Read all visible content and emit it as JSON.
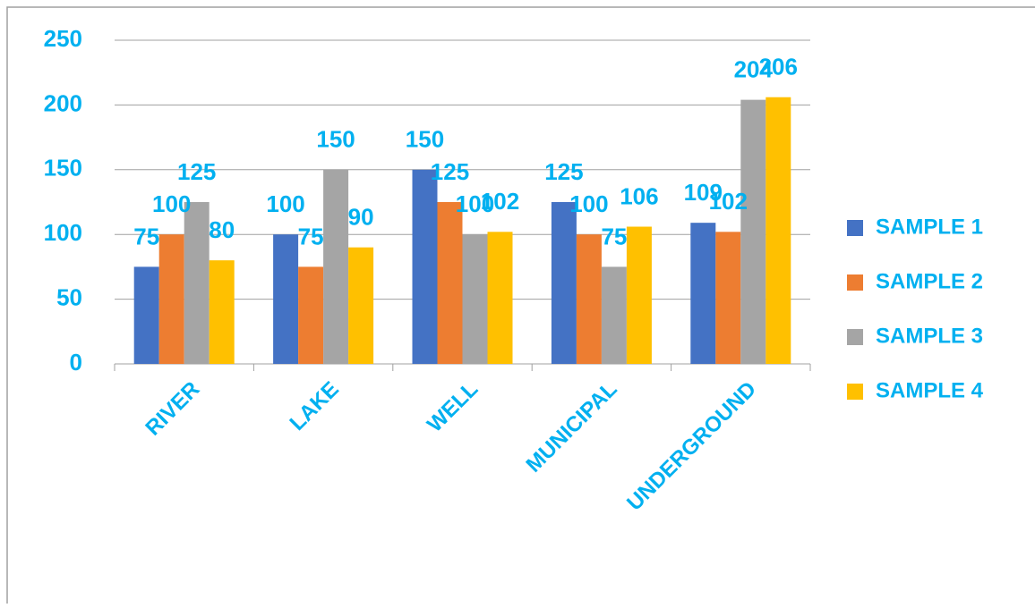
{
  "chart_data": {
    "type": "bar",
    "categories": [
      "RIVER",
      "LAKE",
      "WELL",
      "MUNICIPAL",
      "UNDERGROUND"
    ],
    "series": [
      {
        "name": "SAMPLE 1",
        "color": "#4472c4",
        "values": [
          75,
          100,
          150,
          125,
          109
        ]
      },
      {
        "name": "SAMPLE 2",
        "color": "#ed7d31",
        "values": [
          100,
          75,
          125,
          100,
          102
        ]
      },
      {
        "name": "SAMPLE 3",
        "color": "#a5a5a5",
        "values": [
          125,
          150,
          100,
          75,
          204
        ]
      },
      {
        "name": "SAMPLE 4",
        "color": "#ffc000",
        "values": [
          80,
          90,
          102,
          106,
          206
        ]
      }
    ],
    "ylim": [
      0,
      250
    ],
    "yticks": [
      0,
      50,
      100,
      150,
      200,
      250
    ],
    "grid": true,
    "legend": "right"
  }
}
